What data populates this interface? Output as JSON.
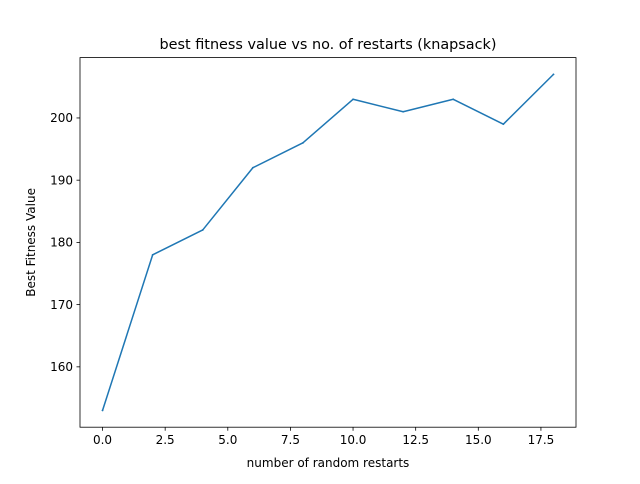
{
  "chart_data": {
    "type": "line",
    "title": "best fitness value vs no. of restarts (knapsack)",
    "xlabel": "number of random restarts",
    "ylabel": "Best Fitness Value",
    "xlim": [
      -0.9,
      18.9
    ],
    "ylim": [
      150.3,
      209.7
    ],
    "xticks": [
      0.0,
      2.5,
      5.0,
      7.5,
      10.0,
      12.5,
      15.0,
      17.5
    ],
    "xtick_labels": [
      "0.0",
      "2.5",
      "5.0",
      "7.5",
      "10.0",
      "12.5",
      "15.0",
      "17.5"
    ],
    "yticks": [
      160,
      170,
      180,
      190,
      200
    ],
    "ytick_labels": [
      "160",
      "170",
      "180",
      "190",
      "200"
    ],
    "grid": false,
    "line_color": "#1f77b4",
    "series": [
      {
        "x": [
          0,
          2,
          4,
          6,
          8,
          10,
          12,
          14,
          16,
          18
        ],
        "values": [
          153,
          178,
          182,
          192,
          196,
          203,
          201,
          203,
          199,
          207
        ]
      }
    ]
  }
}
